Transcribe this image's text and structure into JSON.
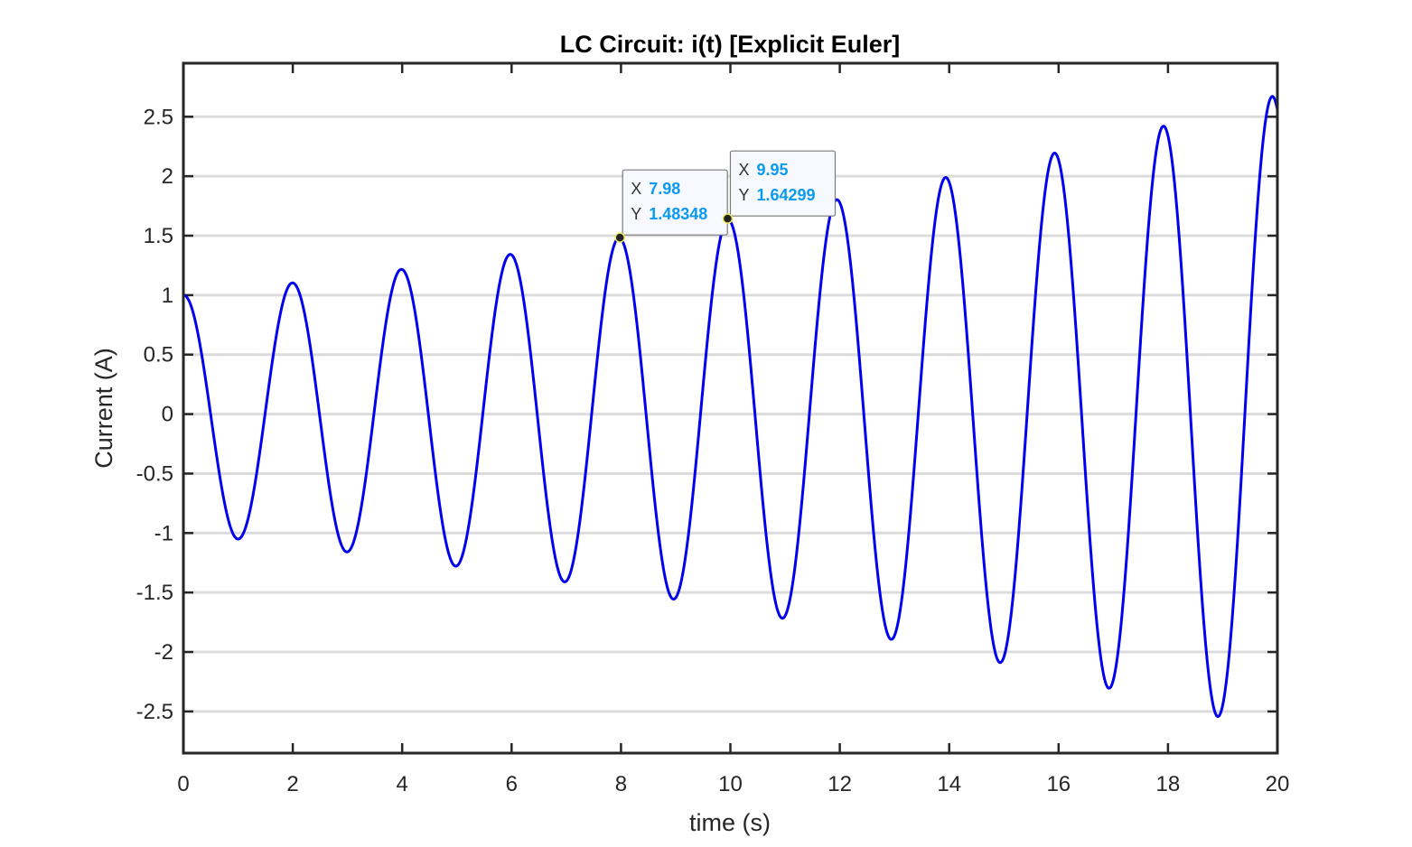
{
  "chart_data": {
    "type": "line",
    "title": "LC Circuit: i(t) [Explicit Euler]",
    "xlabel": "time (s)",
    "ylabel": "Current (A)",
    "xlim": [
      0,
      20
    ],
    "ylim": [
      -2.85,
      2.95
    ],
    "xticks": [
      0,
      2,
      4,
      6,
      8,
      10,
      12,
      14,
      16,
      18,
      20
    ],
    "xtick_labels": [
      "0",
      "2",
      "4",
      "6",
      "8",
      "10",
      "12",
      "14",
      "16",
      "18",
      "20"
    ],
    "yticks": [
      2.5,
      2,
      1.5,
      1,
      0.5,
      0,
      -0.5,
      -1,
      -1.5,
      -2,
      -2.5
    ],
    "ytick_labels": [
      "2.5",
      "2",
      "1.5",
      "1",
      "0.5",
      "0",
      "-0.5",
      "-1",
      "-1.5",
      "-2",
      "-2.5"
    ],
    "grid": "horizontal",
    "series": [
      {
        "name": "i(t)",
        "color": "#0000ee",
        "model": {
          "function": "cos",
          "initial_value": 1,
          "angular_frequency": 3.1569,
          "growth_rate": 0.04935,
          "t_start": 0,
          "t_end": 20,
          "step": 0.01
        },
        "peaks_observed": [
          {
            "x": 2,
            "y": 1.1
          },
          {
            "x": 4,
            "y": 1.22
          },
          {
            "x": 6,
            "y": 1.35
          },
          {
            "x": 7.98,
            "y": 1.48348
          },
          {
            "x": 9.95,
            "y": 1.64299
          },
          {
            "x": 11.95,
            "y": 1.81
          },
          {
            "x": 13.93,
            "y": 2.0
          },
          {
            "x": 15.92,
            "y": 2.21
          },
          {
            "x": 17.91,
            "y": 2.44
          },
          {
            "x": 19.9,
            "y": 2.7
          }
        ]
      }
    ],
    "datatips": [
      {
        "x_label": "X",
        "x_value": "7.98",
        "y_label": "Y",
        "y_value": "1.48348",
        "x": 7.98,
        "y": 1.48348
      },
      {
        "x_label": "X",
        "x_value": "9.95",
        "y_label": "Y",
        "y_value": "1.64299",
        "x": 9.95,
        "y": 1.64299
      }
    ],
    "colors": {
      "line": "#0000ee",
      "axes": "#262626",
      "grid": "#dcdcdc",
      "datatip_value": "#0a9af0",
      "datatip_bg": "#f8f8ff"
    }
  }
}
